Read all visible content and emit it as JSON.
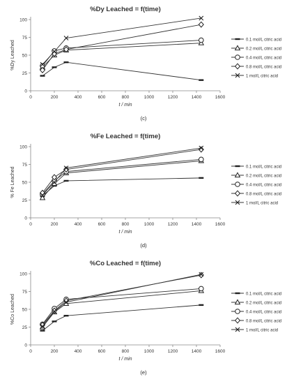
{
  "chart_data": [
    {
      "type": "line",
      "title": "%Dy Leached = f(time)",
      "xlabel": "t / min",
      "ylabel": "%Dy Leached",
      "panel_label": "(c)",
      "xlim": [
        0,
        1600
      ],
      "ylim": [
        0,
        100
      ],
      "x_ticks": [
        "0",
        "200",
        "400",
        "600",
        "800",
        "1000",
        "1200",
        "1400",
        "1600"
      ],
      "y_ticks": [
        "0",
        "25",
        "50",
        "75",
        "100"
      ],
      "legend_position": "right",
      "series": [
        {
          "name": "0.1 mol/L citric acid",
          "marker": "dash",
          "x": [
            100,
            200,
            300,
            1440
          ],
          "y": [
            21,
            33,
            40,
            15
          ]
        },
        {
          "name": "0.2 mol/L citric acid",
          "marker": "triangle",
          "x": [
            100,
            200,
            300,
            1440
          ],
          "y": [
            33,
            50,
            57,
            67
          ]
        },
        {
          "name": "0.4 mol/L citric acid",
          "marker": "circle",
          "x": [
            100,
            200,
            300,
            1440
          ],
          "y": [
            35,
            56,
            60,
            71
          ]
        },
        {
          "name": "0.8 mol/L citric acid",
          "marker": "diamond",
          "x": [
            100,
            200,
            300,
            1440
          ],
          "y": [
            29,
            52,
            58,
            93
          ]
        },
        {
          "name": "1 mol/L citric acid",
          "marker": "cross",
          "x": [
            100,
            200,
            300,
            1440
          ],
          "y": [
            37,
            55,
            74,
            102
          ]
        }
      ]
    },
    {
      "type": "line",
      "title": "%Fe Leached = f(time)",
      "xlabel": "t / min",
      "ylabel": "% Fe Leached",
      "panel_label": "(d)",
      "xlim": [
        0,
        1600
      ],
      "ylim": [
        0,
        100
      ],
      "x_ticks": [
        "0",
        "200",
        "400",
        "600",
        "800",
        "1000",
        "1200",
        "1400",
        "1600"
      ],
      "y_ticks": [
        "0",
        "25",
        "50",
        "75",
        "100"
      ],
      "legend_position": "right",
      "series": [
        {
          "name": "0.1 mol/L citric acid",
          "marker": "dash",
          "x": [
            100,
            200,
            300,
            1440
          ],
          "y": [
            31,
            45,
            52,
            56
          ]
        },
        {
          "name": "0.2 mol/L citric acid",
          "marker": "triangle",
          "x": [
            100,
            200,
            300,
            1440
          ],
          "y": [
            28,
            48,
            63,
            80
          ]
        },
        {
          "name": "0.4 mol/L citric acid",
          "marker": "circle",
          "x": [
            100,
            200,
            300,
            1440
          ],
          "y": [
            33,
            52,
            65,
            82
          ]
        },
        {
          "name": "0.8 mol/L citric acid",
          "marker": "diamond",
          "x": [
            100,
            200,
            300,
            1440
          ],
          "y": [
            35,
            57,
            68,
            96
          ]
        },
        {
          "name": "1 mol/L citric acid",
          "marker": "cross",
          "x": [
            100,
            200,
            300,
            1440
          ],
          "y": [
            32,
            50,
            70,
            98
          ]
        }
      ]
    },
    {
      "type": "line",
      "title": "%Co Leached = f(time)",
      "xlabel": "t / min",
      "ylabel": "%Co Leached",
      "panel_label": "(e)",
      "xlim": [
        0,
        1600
      ],
      "ylim": [
        0,
        100
      ],
      "x_ticks": [
        "0",
        "200",
        "400",
        "600",
        "800",
        "1000",
        "1200",
        "1400",
        "1600"
      ],
      "y_ticks": [
        "0",
        "25",
        "50",
        "75",
        "100"
      ],
      "legend_position": "right",
      "series": [
        {
          "name": "0.1 mol/L citric acid",
          "marker": "dash",
          "x": [
            100,
            200,
            300,
            1440
          ],
          "y": [
            20,
            33,
            41,
            56
          ]
        },
        {
          "name": "0.2 mol/L citric acid",
          "marker": "triangle",
          "x": [
            100,
            200,
            300,
            1440
          ],
          "y": [
            25,
            46,
            58,
            76
          ]
        },
        {
          "name": "0.4 mol/L citric acid",
          "marker": "circle",
          "x": [
            100,
            200,
            300,
            1440
          ],
          "y": [
            29,
            51,
            64,
            79
          ]
        },
        {
          "name": "0.8 mol/L citric acid",
          "marker": "diamond",
          "x": [
            100,
            200,
            300,
            1440
          ],
          "y": [
            28,
            48,
            62,
            98
          ]
        },
        {
          "name": "1 mol/L citric acid",
          "marker": "cross",
          "x": [
            100,
            200,
            300,
            1440
          ],
          "y": [
            26,
            47,
            60,
            99
          ]
        }
      ]
    }
  ]
}
